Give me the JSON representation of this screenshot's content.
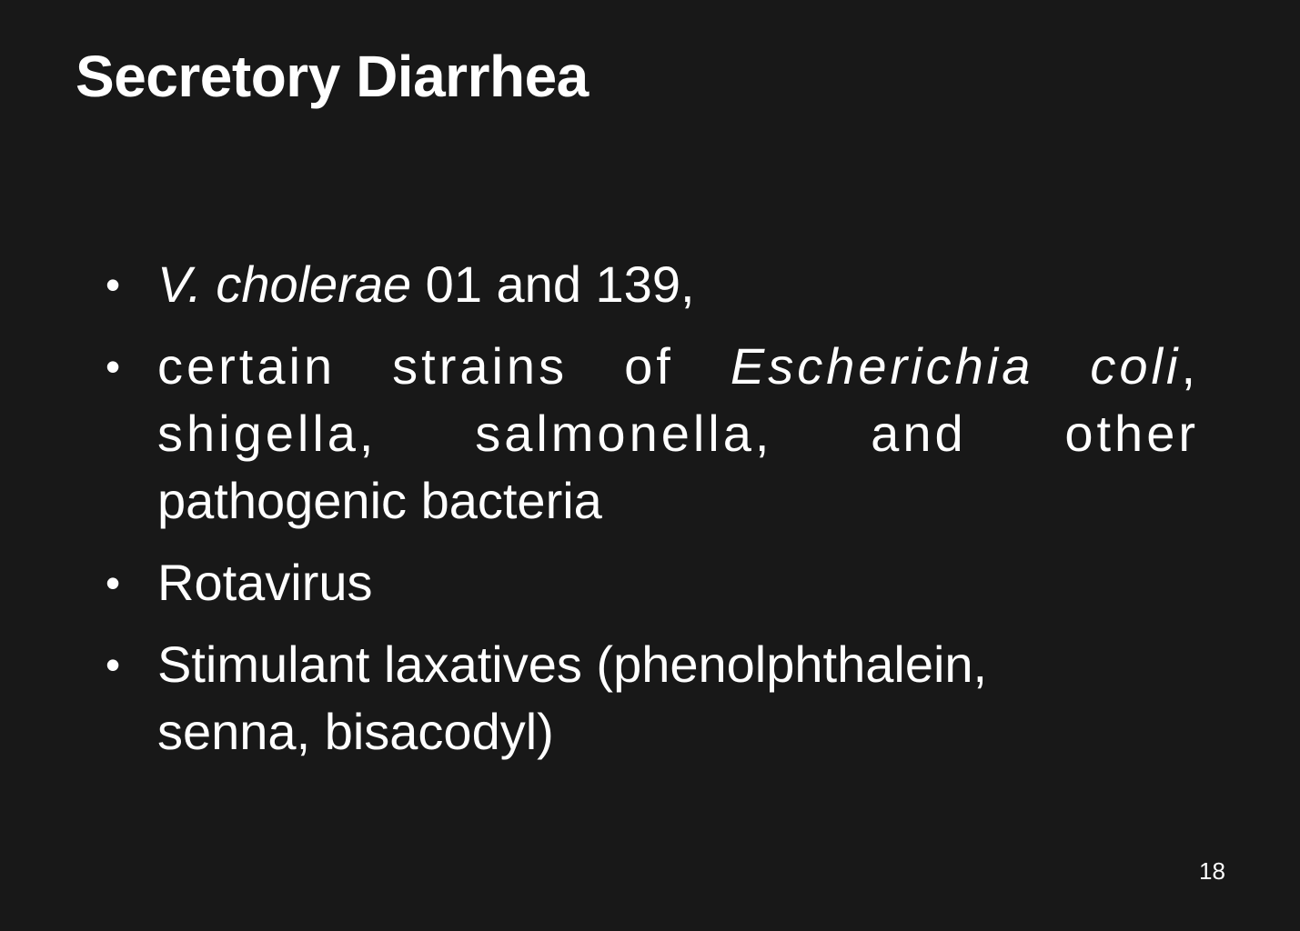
{
  "slide": {
    "title": "Secretory Diarrhea",
    "page_number": "18",
    "bullets": [
      {
        "italic": "V. cholerae",
        "rest": " 01 and 139,"
      },
      {
        "line1_pre": "certain strains of ",
        "line1_italic": "Escherichia coli",
        "line1_post": ",",
        "line2": "shigella, salmonella, and other",
        "line3": "pathogenic bacteria"
      },
      {
        "text": "Rotavirus"
      },
      {
        "line1": "Stimulant laxatives (phenolphthalein,",
        "line2": "senna, bisacodyl)"
      }
    ]
  }
}
